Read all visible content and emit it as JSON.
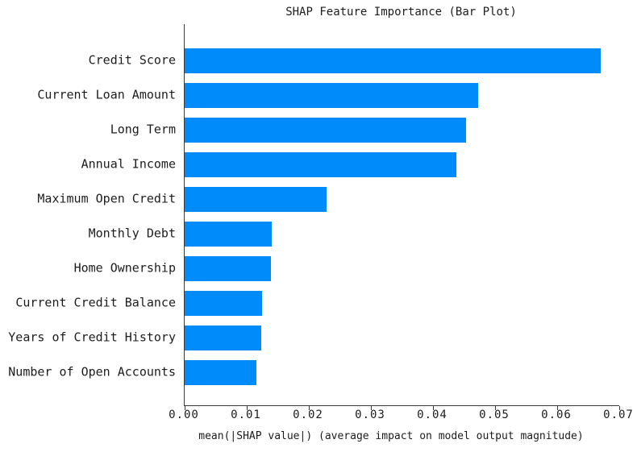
{
  "chart_data": {
    "type": "bar",
    "orientation": "horizontal",
    "title": "SHAP Feature Importance (Bar Plot)",
    "xlabel": "mean(|SHAP value|) (average impact on model output magnitude)",
    "categories": [
      "Credit Score",
      "Current Loan Amount",
      "Long Term",
      "Annual Income",
      "Maximum Open Credit",
      "Monthly Debt",
      "Home Ownership",
      "Current Credit Balance",
      "Years of Credit History",
      "Number of Open Accounts"
    ],
    "values": [
      0.067,
      0.0473,
      0.0453,
      0.0437,
      0.0229,
      0.014,
      0.0139,
      0.0124,
      0.0123,
      0.0116
    ],
    "xlim": [
      0,
      0.07
    ],
    "x_tick_values": [
      0.0,
      0.01,
      0.02,
      0.03,
      0.04,
      0.05,
      0.06,
      0.07
    ],
    "x_tick_labels": [
      "0.00",
      "0.01",
      "0.02",
      "0.03",
      "0.04",
      "0.05",
      "0.06",
      "0.07"
    ],
    "bar_color": "#008bfb",
    "text_color": "#1c1c1c",
    "axis_color": "#3a3a3a",
    "background_color": "#ffffff",
    "grid": false,
    "legend_position": "none"
  }
}
